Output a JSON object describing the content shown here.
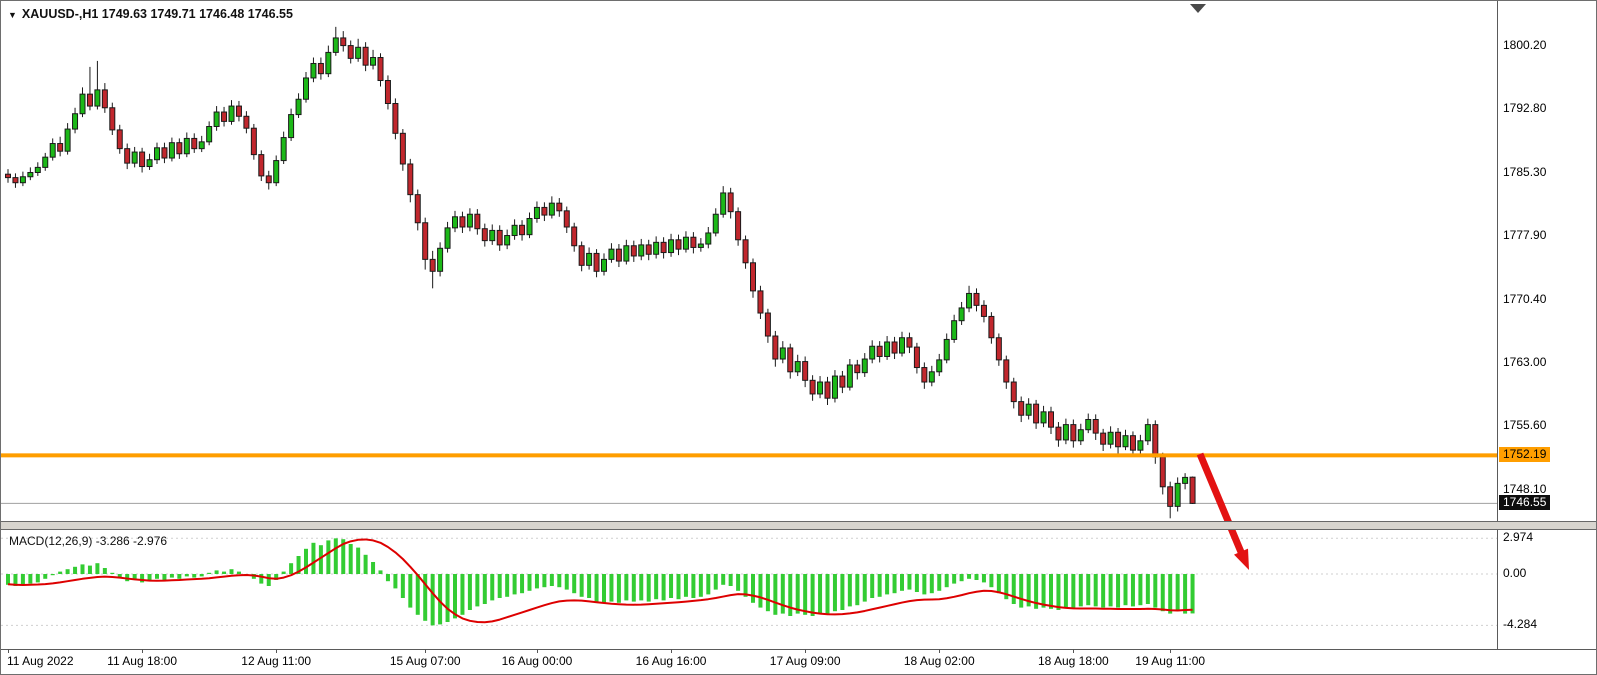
{
  "header": {
    "dropdown_icon": "▼",
    "title": "XAUUSD-,H1 1749.63 1749.71 1746.48 1746.55"
  },
  "macd_title": "MACD(12,26,9) -3.286 -2.976",
  "colors": {
    "up": "#1cb818",
    "down": "#c1272d",
    "wick": "#1a1a1a",
    "hline": "#ff9e00",
    "bid_line": "#a0a0a0",
    "macd_hist": "#33cc33",
    "macd_signal": "#dd0000",
    "arrow": "#e31212",
    "shift_marker": "#4a4a4a",
    "axis_text": "#000000"
  },
  "chart_data": {
    "type": "candlestick",
    "title": "XAUUSD- H1",
    "symbol": "XAUUSD-",
    "timeframe": "H1",
    "last_ohlc": {
      "open": 1749.63,
      "high": 1749.71,
      "low": 1746.48,
      "close": 1746.55
    },
    "y_range": [
      1744.6,
      1802.6
    ],
    "y_ticks": [
      {
        "v": 1800.2,
        "t": "1800.20"
      },
      {
        "v": 1792.8,
        "t": "1792.80"
      },
      {
        "v": 1785.3,
        "t": "1785.30"
      },
      {
        "v": 1777.9,
        "t": "1777.90"
      },
      {
        "v": 1770.4,
        "t": "1770.40"
      },
      {
        "v": 1763.0,
        "t": "1763.00"
      },
      {
        "v": 1755.6,
        "t": "1755.60"
      },
      {
        "v": 1748.1,
        "t": "1748.10"
      }
    ],
    "x_ticks": [
      {
        "i": 0,
        "t": "11 Aug 2022"
      },
      {
        "i": 18,
        "t": "11 Aug 18:00"
      },
      {
        "i": 36,
        "t": "12 Aug 11:00"
      },
      {
        "i": 56,
        "t": "15 Aug 07:00"
      },
      {
        "i": 71,
        "t": "16 Aug 00:00"
      },
      {
        "i": 89,
        "t": "16 Aug 16:00"
      },
      {
        "i": 107,
        "t": "17 Aug 09:00"
      },
      {
        "i": 125,
        "t": "18 Aug 02:00"
      },
      {
        "i": 143,
        "t": "18 Aug 18:00"
      },
      {
        "i": 156,
        "t": "19 Aug 11:00"
      }
    ],
    "horizontal_line": {
      "price": 1752.19,
      "label": "1752.19"
    },
    "current_price": {
      "price": 1746.55,
      "label": "1746.55"
    },
    "candles": [
      [
        1785.2,
        1785.8,
        1784.2,
        1784.8
      ],
      [
        1784.8,
        1785.3,
        1783.6,
        1784.2
      ],
      [
        1784.2,
        1785.5,
        1783.8,
        1784.9
      ],
      [
        1784.9,
        1786.0,
        1784.5,
        1785.4
      ],
      [
        1785.4,
        1786.6,
        1785.0,
        1786.0
      ],
      [
        1786.0,
        1787.7,
        1785.6,
        1787.2
      ],
      [
        1787.2,
        1789.4,
        1786.8,
        1788.8
      ],
      [
        1788.8,
        1789.6,
        1787.3,
        1787.9
      ],
      [
        1787.9,
        1791.2,
        1787.5,
        1790.5
      ],
      [
        1790.5,
        1793.0,
        1790.0,
        1792.3
      ],
      [
        1792.3,
        1795.4,
        1791.9,
        1794.6
      ],
      [
        1794.6,
        1797.8,
        1792.7,
        1793.2
      ],
      [
        1793.2,
        1798.5,
        1792.8,
        1795.1
      ],
      [
        1795.1,
        1795.9,
        1792.4,
        1793.0
      ],
      [
        1793.0,
        1793.6,
        1789.8,
        1790.4
      ],
      [
        1790.4,
        1791.0,
        1787.6,
        1788.2
      ],
      [
        1788.2,
        1788.8,
        1785.8,
        1786.5
      ],
      [
        1786.5,
        1788.4,
        1786.0,
        1787.8
      ],
      [
        1787.8,
        1788.3,
        1785.4,
        1786.1
      ],
      [
        1786.1,
        1787.6,
        1785.7,
        1786.9
      ],
      [
        1786.9,
        1788.9,
        1786.4,
        1788.3
      ],
      [
        1788.3,
        1788.9,
        1786.5,
        1787.1
      ],
      [
        1787.1,
        1789.5,
        1786.7,
        1788.9
      ],
      [
        1788.9,
        1789.4,
        1787.0,
        1787.6
      ],
      [
        1787.6,
        1790.1,
        1787.2,
        1789.4
      ],
      [
        1789.4,
        1790.0,
        1787.7,
        1788.2
      ],
      [
        1788.2,
        1789.7,
        1787.8,
        1789.0
      ],
      [
        1789.0,
        1791.4,
        1788.6,
        1790.8
      ],
      [
        1790.8,
        1793.2,
        1790.3,
        1792.5
      ],
      [
        1792.5,
        1793.1,
        1790.8,
        1791.4
      ],
      [
        1791.4,
        1793.9,
        1791.0,
        1793.2
      ],
      [
        1793.2,
        1793.8,
        1791.4,
        1792.0
      ],
      [
        1792.0,
        1792.6,
        1790.0,
        1790.6
      ],
      [
        1790.6,
        1791.1,
        1786.9,
        1787.5
      ],
      [
        1787.5,
        1788.0,
        1784.4,
        1785.0
      ],
      [
        1785.0,
        1785.6,
        1783.4,
        1784.2
      ],
      [
        1784.2,
        1787.4,
        1783.8,
        1786.8
      ],
      [
        1786.8,
        1790.2,
        1786.4,
        1789.5
      ],
      [
        1789.5,
        1792.9,
        1789.1,
        1792.2
      ],
      [
        1792.2,
        1794.7,
        1791.8,
        1794.0
      ],
      [
        1794.0,
        1797.2,
        1793.6,
        1796.5
      ],
      [
        1796.5,
        1798.9,
        1796.0,
        1798.2
      ],
      [
        1798.2,
        1798.9,
        1796.3,
        1797.0
      ],
      [
        1797.0,
        1800.3,
        1796.6,
        1799.5
      ],
      [
        1799.5,
        1802.5,
        1799.1,
        1801.2
      ],
      [
        1801.2,
        1802.0,
        1799.6,
        1800.3
      ],
      [
        1800.3,
        1800.9,
        1798.2,
        1798.8
      ],
      [
        1798.8,
        1801.1,
        1798.4,
        1800.1
      ],
      [
        1800.1,
        1800.7,
        1797.3,
        1798.0
      ],
      [
        1798.0,
        1799.8,
        1797.5,
        1798.9
      ],
      [
        1798.9,
        1799.4,
        1795.5,
        1796.2
      ],
      [
        1796.2,
        1796.8,
        1792.8,
        1793.5
      ],
      [
        1793.5,
        1794.1,
        1789.3,
        1790.0
      ],
      [
        1790.0,
        1790.5,
        1785.6,
        1786.4
      ],
      [
        1786.4,
        1787.0,
        1781.9,
        1782.8
      ],
      [
        1782.8,
        1783.4,
        1778.6,
        1779.5
      ],
      [
        1779.5,
        1780.1,
        1774.0,
        1775.2
      ],
      [
        1775.2,
        1776.2,
        1771.8,
        1773.8
      ],
      [
        1773.8,
        1777.2,
        1773.2,
        1776.5
      ],
      [
        1776.5,
        1779.6,
        1776.0,
        1778.9
      ],
      [
        1778.9,
        1780.9,
        1778.4,
        1780.2
      ],
      [
        1780.2,
        1780.8,
        1778.3,
        1779.0
      ],
      [
        1779.0,
        1781.2,
        1778.5,
        1780.5
      ],
      [
        1780.5,
        1781.1,
        1778.1,
        1778.8
      ],
      [
        1778.8,
        1779.4,
        1776.7,
        1777.4
      ],
      [
        1777.4,
        1779.3,
        1776.9,
        1778.6
      ],
      [
        1778.6,
        1779.2,
        1776.2,
        1776.9
      ],
      [
        1776.9,
        1778.7,
        1776.4,
        1778.0
      ],
      [
        1778.0,
        1779.9,
        1777.5,
        1779.2
      ],
      [
        1779.2,
        1779.8,
        1777.4,
        1778.1
      ],
      [
        1778.1,
        1780.7,
        1777.7,
        1780.0
      ],
      [
        1780.0,
        1782.0,
        1779.5,
        1781.3
      ],
      [
        1781.3,
        1781.9,
        1779.7,
        1780.4
      ],
      [
        1780.4,
        1782.6,
        1780.0,
        1781.8
      ],
      [
        1781.8,
        1782.4,
        1780.2,
        1780.9
      ],
      [
        1780.9,
        1781.4,
        1778.3,
        1779.0
      ],
      [
        1779.0,
        1779.5,
        1776.1,
        1776.8
      ],
      [
        1776.8,
        1777.3,
        1773.8,
        1774.5
      ],
      [
        1774.5,
        1776.6,
        1774.0,
        1775.9
      ],
      [
        1775.9,
        1776.4,
        1773.1,
        1773.8
      ],
      [
        1773.8,
        1775.9,
        1773.3,
        1775.2
      ],
      [
        1775.2,
        1777.1,
        1774.8,
        1776.4
      ],
      [
        1776.4,
        1777.0,
        1774.3,
        1775.0
      ],
      [
        1775.0,
        1777.5,
        1774.6,
        1776.8
      ],
      [
        1776.8,
        1777.4,
        1774.9,
        1775.6
      ],
      [
        1775.6,
        1777.6,
        1775.1,
        1776.9
      ],
      [
        1776.9,
        1777.5,
        1775.1,
        1775.8
      ],
      [
        1775.8,
        1777.9,
        1775.3,
        1777.2
      ],
      [
        1777.2,
        1777.8,
        1775.3,
        1776.0
      ],
      [
        1776.0,
        1778.2,
        1775.5,
        1777.5
      ],
      [
        1777.5,
        1778.1,
        1775.7,
        1776.4
      ],
      [
        1776.4,
        1778.5,
        1776.0,
        1777.8
      ],
      [
        1777.8,
        1778.4,
        1775.9,
        1776.6
      ],
      [
        1776.6,
        1777.7,
        1776.1,
        1777.0
      ],
      [
        1777.0,
        1779.0,
        1776.5,
        1778.3
      ],
      [
        1778.3,
        1781.2,
        1777.9,
        1780.5
      ],
      [
        1780.5,
        1783.8,
        1780.1,
        1783.0
      ],
      [
        1783.0,
        1783.6,
        1780.0,
        1780.8
      ],
      [
        1780.8,
        1781.3,
        1776.8,
        1777.5
      ],
      [
        1777.5,
        1778.0,
        1774.1,
        1774.8
      ],
      [
        1774.8,
        1775.3,
        1770.7,
        1771.5
      ],
      [
        1771.5,
        1772.1,
        1768.2,
        1768.9
      ],
      [
        1768.9,
        1769.4,
        1765.4,
        1766.2
      ],
      [
        1766.2,
        1766.8,
        1762.6,
        1763.5
      ],
      [
        1763.5,
        1765.6,
        1763.0,
        1764.8
      ],
      [
        1764.8,
        1765.3,
        1761.2,
        1762.0
      ],
      [
        1762.0,
        1764.0,
        1761.5,
        1763.2
      ],
      [
        1763.2,
        1763.8,
        1760.2,
        1761.0
      ],
      [
        1761.0,
        1761.6,
        1758.6,
        1759.4
      ],
      [
        1759.4,
        1761.5,
        1758.9,
        1760.8
      ],
      [
        1760.8,
        1761.4,
        1758.1,
        1758.9
      ],
      [
        1758.9,
        1762.2,
        1758.4,
        1761.5
      ],
      [
        1761.5,
        1762.1,
        1759.5,
        1760.2
      ],
      [
        1760.2,
        1763.5,
        1759.8,
        1762.8
      ],
      [
        1762.8,
        1763.4,
        1761.1,
        1761.9
      ],
      [
        1761.9,
        1764.2,
        1761.4,
        1763.5
      ],
      [
        1763.5,
        1765.7,
        1763.0,
        1765.0
      ],
      [
        1765.0,
        1765.6,
        1763.1,
        1763.8
      ],
      [
        1763.8,
        1766.2,
        1763.4,
        1765.5
      ],
      [
        1765.5,
        1766.1,
        1763.5,
        1764.2
      ],
      [
        1764.2,
        1766.7,
        1763.8,
        1766.0
      ],
      [
        1766.0,
        1766.6,
        1764.2,
        1764.9
      ],
      [
        1764.9,
        1765.4,
        1761.8,
        1762.5
      ],
      [
        1762.5,
        1763.1,
        1760.0,
        1760.8
      ],
      [
        1760.8,
        1762.7,
        1760.3,
        1762.0
      ],
      [
        1762.0,
        1764.1,
        1761.5,
        1763.4
      ],
      [
        1763.4,
        1766.5,
        1763.0,
        1765.8
      ],
      [
        1765.8,
        1768.7,
        1765.4,
        1768.0
      ],
      [
        1768.0,
        1770.2,
        1767.5,
        1769.5
      ],
      [
        1769.5,
        1772.1,
        1769.0,
        1771.2
      ],
      [
        1771.2,
        1771.8,
        1769.1,
        1769.8
      ],
      [
        1769.8,
        1770.4,
        1767.8,
        1768.5
      ],
      [
        1768.5,
        1769.0,
        1765.3,
        1766.0
      ],
      [
        1766.0,
        1766.5,
        1762.7,
        1763.4
      ],
      [
        1763.4,
        1763.9,
        1760.0,
        1760.8
      ],
      [
        1760.8,
        1761.3,
        1757.7,
        1758.5
      ],
      [
        1758.5,
        1759.1,
        1756.1,
        1756.9
      ],
      [
        1756.9,
        1758.9,
        1756.4,
        1758.2
      ],
      [
        1758.2,
        1758.7,
        1755.3,
        1756.0
      ],
      [
        1756.0,
        1758.0,
        1755.5,
        1757.3
      ],
      [
        1757.3,
        1757.9,
        1754.7,
        1755.5
      ],
      [
        1755.5,
        1756.1,
        1753.2,
        1754.0
      ],
      [
        1754.0,
        1756.5,
        1753.5,
        1755.8
      ],
      [
        1755.8,
        1756.4,
        1753.1,
        1753.9
      ],
      [
        1753.9,
        1755.9,
        1753.4,
        1755.2
      ],
      [
        1755.2,
        1757.1,
        1754.8,
        1756.4
      ],
      [
        1756.4,
        1757.0,
        1754.0,
        1754.8
      ],
      [
        1754.8,
        1755.3,
        1752.7,
        1753.5
      ],
      [
        1753.5,
        1755.6,
        1753.0,
        1754.9
      ],
      [
        1754.9,
        1755.4,
        1752.4,
        1753.2
      ],
      [
        1753.2,
        1755.2,
        1752.8,
        1754.5
      ],
      [
        1754.5,
        1755.0,
        1752.0,
        1752.8
      ],
      [
        1752.8,
        1754.6,
        1752.3,
        1753.9
      ],
      [
        1753.9,
        1756.5,
        1753.4,
        1755.8
      ],
      [
        1755.8,
        1756.3,
        1751.2,
        1752.0
      ],
      [
        1752.0,
        1752.5,
        1747.6,
        1748.5
      ],
      [
        1748.5,
        1749.1,
        1744.8,
        1746.2
      ],
      [
        1746.2,
        1749.6,
        1745.6,
        1748.9
      ],
      [
        1748.9,
        1750.1,
        1748.2,
        1749.6
      ],
      [
        1749.63,
        1749.71,
        1746.48,
        1746.55
      ]
    ],
    "macd": {
      "params": "12,26,9",
      "value": -3.286,
      "signal_value": -2.976,
      "hist_range": [
        -4.284,
        2.974
      ],
      "y_ticks": [
        {
          "v": 2.974,
          "t": "2.974"
        },
        {
          "v": 0,
          "t": "0.00"
        },
        {
          "v": -4.284,
          "t": "-4.284"
        }
      ],
      "histogram": [
        -0.9,
        -1.0,
        -0.9,
        -0.8,
        -0.7,
        -0.4,
        -0.1,
        0.2,
        0.4,
        0.6,
        0.8,
        0.7,
        0.9,
        0.5,
        0.1,
        -0.3,
        -0.6,
        -0.5,
        -0.7,
        -0.6,
        -0.4,
        -0.5,
        -0.3,
        -0.4,
        -0.2,
        -0.3,
        -0.2,
        0.1,
        0.3,
        0.2,
        0.4,
        0.2,
        0.0,
        -0.4,
        -0.8,
        -1.0,
        -0.5,
        0.2,
        0.9,
        1.5,
        2.1,
        2.6,
        2.4,
        2.8,
        2.97,
        2.9,
        2.5,
        2.2,
        1.6,
        1.0,
        0.3,
        -0.6,
        -1.2,
        -2.0,
        -2.8,
        -3.4,
        -3.9,
        -4.28,
        -4.2,
        -4.0,
        -3.7,
        -3.4,
        -3.0,
        -2.7,
        -2.5,
        -2.2,
        -2.0,
        -1.9,
        -1.7,
        -1.6,
        -1.4,
        -1.2,
        -1.1,
        -1.0,
        -1.1,
        -1.3,
        -1.6,
        -1.9,
        -2.0,
        -2.3,
        -2.4,
        -2.3,
        -2.4,
        -2.2,
        -2.3,
        -2.2,
        -2.3,
        -2.1,
        -2.2,
        -2.0,
        -2.1,
        -1.9,
        -2.0,
        -1.9,
        -1.7,
        -1.3,
        -0.9,
        -1.0,
        -1.4,
        -1.9,
        -2.4,
        -2.8,
        -3.1,
        -3.4,
        -3.3,
        -3.5,
        -3.3,
        -3.4,
        -3.5,
        -3.3,
        -3.4,
        -3.1,
        -3.0,
        -2.7,
        -2.6,
        -2.3,
        -2.0,
        -1.9,
        -1.7,
        -1.6,
        -1.4,
        -1.3,
        -1.5,
        -1.7,
        -1.6,
        -1.4,
        -1.1,
        -0.8,
        -0.6,
        -0.4,
        -0.5,
        -0.7,
        -1.1,
        -1.6,
        -2.1,
        -2.5,
        -2.8,
        -2.7,
        -2.9,
        -2.8,
        -2.9,
        -3.0,
        -2.8,
        -2.9,
        -2.7,
        -2.6,
        -2.7,
        -2.8,
        -2.7,
        -2.8,
        -2.6,
        -2.7,
        -2.6,
        -2.5,
        -2.8,
        -3.1,
        -3.3,
        -3.1,
        -3.3,
        -3.286
      ],
      "signal_line": [
        -0.85,
        -0.9,
        -0.92,
        -0.9,
        -0.88,
        -0.84,
        -0.78,
        -0.7,
        -0.6,
        -0.5,
        -0.4,
        -0.32,
        -0.25,
        -0.22,
        -0.25,
        -0.3,
        -0.38,
        -0.45,
        -0.5,
        -0.55,
        -0.56,
        -0.55,
        -0.52,
        -0.5,
        -0.46,
        -0.43,
        -0.4,
        -0.35,
        -0.28,
        -0.22,
        -0.15,
        -0.1,
        -0.08,
        -0.12,
        -0.22,
        -0.35,
        -0.4,
        -0.3,
        -0.1,
        0.2,
        0.55,
        0.95,
        1.35,
        1.75,
        2.15,
        2.5,
        2.72,
        2.85,
        2.88,
        2.8,
        2.6,
        2.25,
        1.8,
        1.25,
        0.6,
        -0.1,
        -0.85,
        -1.6,
        -2.3,
        -2.9,
        -3.35,
        -3.7,
        -3.9,
        -4.0,
        -4.02,
        -3.95,
        -3.8,
        -3.6,
        -3.4,
        -3.2,
        -3.0,
        -2.8,
        -2.6,
        -2.42,
        -2.28,
        -2.22,
        -2.2,
        -2.22,
        -2.28,
        -2.35,
        -2.42,
        -2.48,
        -2.52,
        -2.55,
        -2.56,
        -2.55,
        -2.52,
        -2.48,
        -2.44,
        -2.4,
        -2.35,
        -2.3,
        -2.24,
        -2.18,
        -2.1,
        -2.0,
        -1.88,
        -1.76,
        -1.68,
        -1.7,
        -1.8,
        -1.95,
        -2.15,
        -2.38,
        -2.6,
        -2.8,
        -2.97,
        -3.1,
        -3.22,
        -3.3,
        -3.35,
        -3.36,
        -3.34,
        -3.28,
        -3.2,
        -3.08,
        -2.94,
        -2.8,
        -2.66,
        -2.52,
        -2.38,
        -2.26,
        -2.18,
        -2.14,
        -2.12,
        -2.1,
        -2.02,
        -1.9,
        -1.76,
        -1.6,
        -1.48,
        -1.4,
        -1.42,
        -1.52,
        -1.68,
        -1.88,
        -2.08,
        -2.26,
        -2.42,
        -2.55,
        -2.66,
        -2.76,
        -2.82,
        -2.86,
        -2.88,
        -2.88,
        -2.88,
        -2.9,
        -2.9,
        -2.92,
        -2.92,
        -2.92,
        -2.92,
        -2.9,
        -2.92,
        -2.96,
        -3.02,
        -3.04,
        -3.0,
        -2.976
      ]
    }
  }
}
